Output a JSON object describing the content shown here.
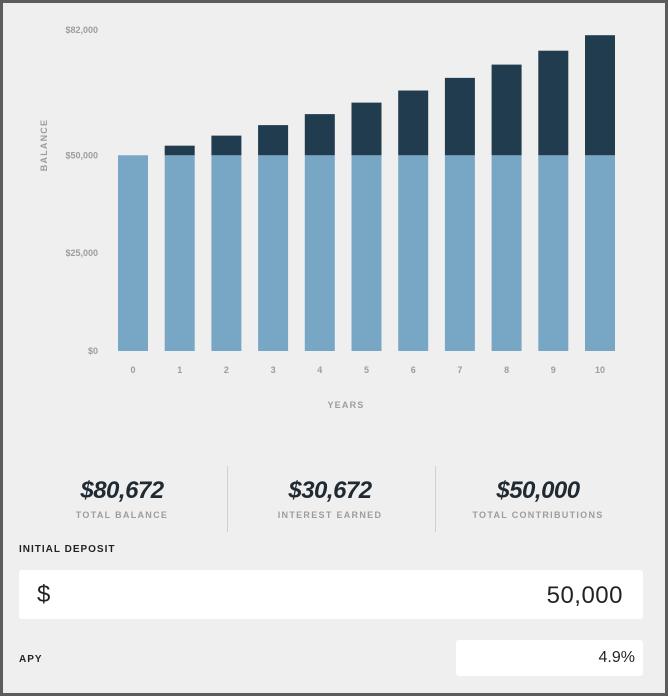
{
  "chart_data": {
    "type": "bar",
    "stacked": true,
    "ylabel": "BALANCE",
    "xlabel": "YEARS",
    "y_ticks": [
      "$82,000",
      "$50,000",
      "$25,000",
      "$0"
    ],
    "ylim": [
      0,
      82000
    ],
    "categories": [
      "0",
      "1",
      "2",
      "3",
      "4",
      "5",
      "6",
      "7",
      "8",
      "9",
      "10"
    ],
    "series": [
      {
        "color": "#78a7c6",
        "values": [
          50000,
          50000,
          50000,
          50000,
          50000,
          50000,
          50000,
          50000,
          50000,
          50000,
          50000
        ]
      },
      {
        "color": "#213b4f",
        "values": [
          0,
          2450,
          5020,
          7700,
          10510,
          13450,
          16540,
          19770,
          23160,
          26710,
          30672
        ]
      }
    ],
    "grid": false,
    "colors": {
      "axis_text": "#9a9da1"
    }
  },
  "summary": {
    "total_balance": {
      "value": "$80,672",
      "label": "TOTAL BALANCE"
    },
    "interest_earned": {
      "value": "$30,672",
      "label": "INTEREST EARNED"
    },
    "total_contributions": {
      "value": "$50,000",
      "label": "TOTAL CONTRIBUTIONS"
    }
  },
  "inputs": {
    "initial_deposit": {
      "label": "INITIAL DEPOSIT",
      "currency": "$",
      "value": "50,000"
    },
    "apy": {
      "label": "APY",
      "value": "4.9%"
    }
  }
}
